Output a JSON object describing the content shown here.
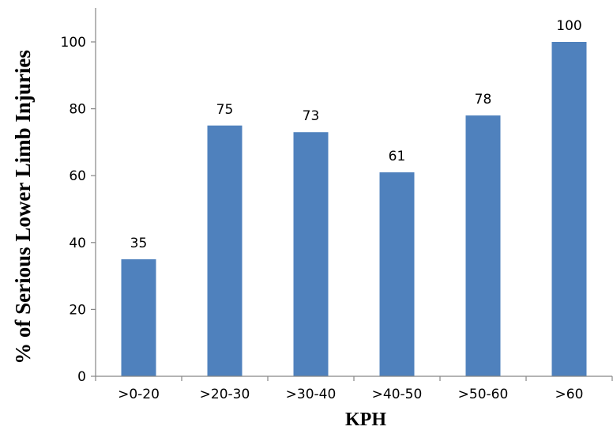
{
  "chart_data": {
    "type": "bar",
    "categories": [
      ">0-20",
      ">20-30",
      ">30-40",
      ">40-50",
      ">50-60",
      ">60"
    ],
    "values": [
      35,
      75,
      73,
      61,
      78,
      100
    ],
    "data_labels": [
      "35",
      "75",
      "73",
      "61",
      "78",
      "100"
    ],
    "xlabel": "KPH",
    "ylabel": "% of Serious Lower Limb Injuries",
    "ylim": [
      0,
      110
    ],
    "yticks": [
      "0",
      "20",
      "40",
      "60",
      "80",
      "100"
    ],
    "ytick_values": [
      0,
      20,
      40,
      60,
      80,
      100
    ],
    "bar_color": "#4f81bd",
    "grid": false,
    "legend": "none"
  }
}
